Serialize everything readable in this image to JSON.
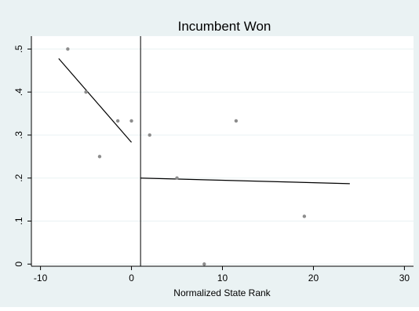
{
  "chart_data": {
    "type": "scatter",
    "title": "Incumbent Won",
    "xlabel": "Normalized State Rank",
    "ylabel": "",
    "xlim": [
      -11,
      31
    ],
    "ylim": [
      -0.005,
      0.53
    ],
    "x_ticks": [
      -10,
      0,
      10,
      20,
      30
    ],
    "x_tick_labels": [
      "-10",
      "0",
      "10",
      "20",
      "30"
    ],
    "y_ticks": [
      0,
      0.1,
      0.2,
      0.3,
      0.4,
      0.5
    ],
    "y_tick_labels": [
      "0",
      ".1",
      ".2",
      ".3",
      ".4",
      ".5"
    ],
    "grid": true,
    "legend": "none",
    "cutoff_x": 1,
    "points": [
      {
        "x": -7,
        "y": 0.5
      },
      {
        "x": -5,
        "y": 0.4
      },
      {
        "x": -3.5,
        "y": 0.25
      },
      {
        "x": -1.5,
        "y": 0.333
      },
      {
        "x": 0,
        "y": 0.333
      },
      {
        "x": 2,
        "y": 0.3
      },
      {
        "x": 5,
        "y": 0.2
      },
      {
        "x": 8,
        "y": 0
      },
      {
        "x": 11.5,
        "y": 0.333
      },
      {
        "x": 19,
        "y": 0.111
      }
    ],
    "fit_lines": [
      {
        "x": [
          -8,
          0
        ],
        "y": [
          0.478,
          0.283
        ]
      },
      {
        "x": [
          1,
          24
        ],
        "y": [
          0.2,
          0.187
        ]
      }
    ],
    "colors": {
      "background": "#eaf2f3",
      "plot_area": "#ffffff",
      "grid": "#eaf2f3",
      "points": "#8c8c8c",
      "lines": "#000000"
    }
  }
}
